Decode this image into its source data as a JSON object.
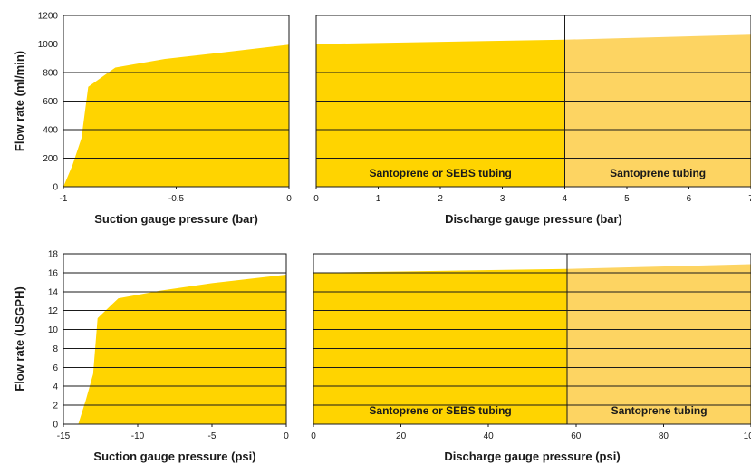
{
  "colors": {
    "primary": "#ffd400",
    "secondary": "#fdd462",
    "line": "#1a1a1a"
  },
  "chart_data": [
    {
      "type": "area",
      "panel": "top-left",
      "xlabel": "Suction gauge pressure (bar)",
      "ylabel": "Flow rate (ml/min)",
      "xlim": [
        -1,
        0
      ],
      "ylim": [
        0,
        1200
      ],
      "xticks": [
        "-1",
        "-0.5",
        "0"
      ],
      "xtick_values": [
        -1,
        -0.5,
        0
      ],
      "yticks": [
        "0",
        "200",
        "400",
        "600",
        "800",
        "1000",
        "1200"
      ],
      "ytick_values": [
        0,
        200,
        400,
        600,
        800,
        1000,
        1200
      ],
      "x": [
        -1.0,
        -0.96,
        -0.92,
        -0.89,
        -0.77,
        -0.55,
        -0.3,
        0.0
      ],
      "y": [
        0,
        150,
        340,
        700,
        835,
        895,
        940,
        995
      ],
      "grid": true
    },
    {
      "type": "area",
      "panel": "top-right",
      "xlabel": "Discharge gauge pressure (bar)",
      "xlim": [
        0,
        7
      ],
      "ylim": [
        0,
        1200
      ],
      "xticks": [
        "0",
        "1",
        "2",
        "3",
        "4",
        "5",
        "6",
        "7"
      ],
      "xtick_values": [
        0,
        1,
        2,
        3,
        4,
        5,
        6,
        7
      ],
      "x": [
        0,
        4,
        7
      ],
      "y": [
        1000,
        1030,
        1065
      ],
      "regions": [
        {
          "label": "Santoprene or SEBS tubing",
          "from": 0,
          "to": 4
        },
        {
          "label": "Santoprene tubing",
          "from": 4,
          "to": 7
        }
      ],
      "grid": true
    },
    {
      "type": "area",
      "panel": "bottom-left",
      "xlabel": "Suction gauge pressure (psi)",
      "ylabel": "Flow rate (USGPH)",
      "xlim": [
        -15,
        0
      ],
      "ylim": [
        0,
        18
      ],
      "xticks": [
        "-15",
        "-10",
        "-5",
        "0"
      ],
      "xtick_values": [
        -15,
        -10,
        -5,
        0
      ],
      "yticks": [
        "0",
        "2",
        "4",
        "6",
        "8",
        "10",
        "12",
        "14",
        "16",
        "18"
      ],
      "ytick_values": [
        0,
        2,
        4,
        6,
        8,
        10,
        12,
        14,
        16,
        18
      ],
      "x": [
        -14.0,
        -13.5,
        -13.0,
        -12.7,
        -11.3,
        -8.5,
        -5.0,
        0.0
      ],
      "y": [
        0,
        2.5,
        5.3,
        11.2,
        13.3,
        14.1,
        14.9,
        15.8
      ],
      "grid": true
    },
    {
      "type": "area",
      "panel": "bottom-right",
      "xlabel": "Discharge gauge pressure (psi)",
      "xlim": [
        0,
        100
      ],
      "ylim": [
        0,
        18
      ],
      "xticks": [
        "0",
        "20",
        "40",
        "60",
        "80",
        "100"
      ],
      "xtick_values": [
        0,
        20,
        40,
        60,
        80,
        100
      ],
      "x": [
        0,
        58,
        100
      ],
      "y": [
        16.0,
        16.4,
        16.9
      ],
      "regions": [
        {
          "label": "Santoprene or SEBS tubing",
          "from": 0,
          "to": 58
        },
        {
          "label": "Santoprene tubing",
          "from": 58,
          "to": 100
        }
      ],
      "grid": true
    }
  ]
}
